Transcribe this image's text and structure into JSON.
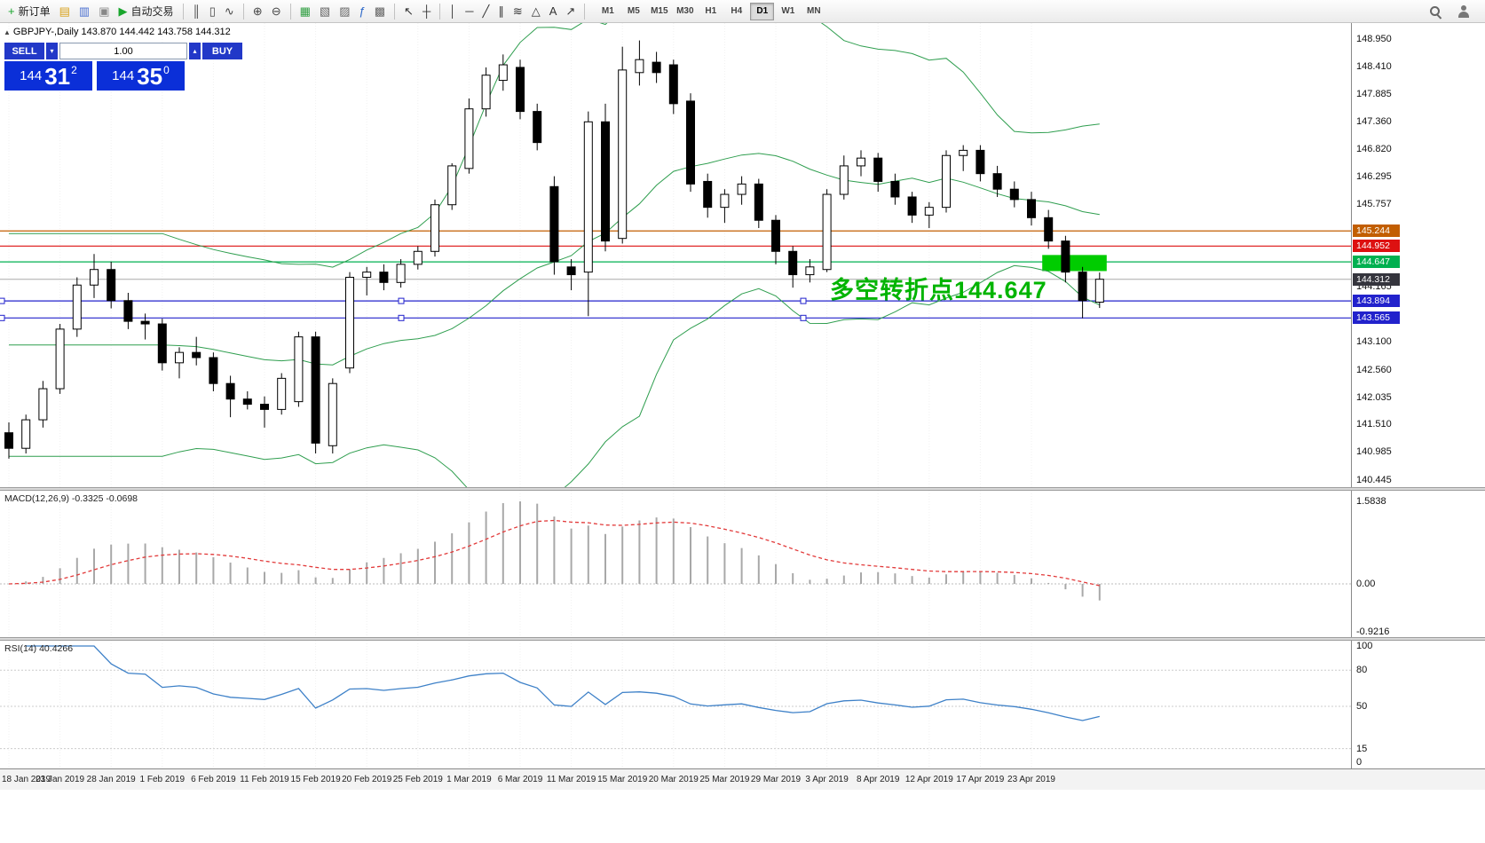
{
  "toolbar": {
    "items": [
      {
        "kind": "button",
        "name": "new-order-button",
        "glyph": "+",
        "glyph_color": "#18a52c",
        "label": "新订单"
      },
      {
        "kind": "icon",
        "name": "chart-window-icon",
        "glyph": "▤",
        "glyph_color": "#d8a018"
      },
      {
        "kind": "icon",
        "name": "navigator-icon",
        "glyph": "▥",
        "glyph_color": "#4a6fd0"
      },
      {
        "kind": "icon",
        "name": "terminal-icon",
        "glyph": "▣",
        "glyph_color": "#888888"
      },
      {
        "kind": "button",
        "name": "auto-trading-button",
        "glyph": "▶",
        "glyph_color": "#18a52c",
        "label": "自动交易"
      },
      {
        "kind": "sep"
      },
      {
        "kind": "icon",
        "name": "bar-chart-icon",
        "glyph": "║",
        "glyph_color": "#444444"
      },
      {
        "kind": "icon",
        "name": "candlestick-chart-icon",
        "glyph": "▯",
        "glyph_color": "#444444"
      },
      {
        "kind": "icon",
        "name": "line-chart-icon",
        "glyph": "∿",
        "glyph_color": "#444444"
      },
      {
        "kind": "sep"
      },
      {
        "kind": "icon",
        "name": "zoom-in-icon",
        "glyph": "⊕",
        "glyph_color": "#444444"
      },
      {
        "kind": "icon",
        "name": "zoom-out-icon",
        "glyph": "⊖",
        "glyph_color": "#444444"
      },
      {
        "kind": "sep"
      },
      {
        "kind": "icon",
        "name": "tile-windows-icon",
        "glyph": "▦",
        "glyph_color": "#2f9e41"
      },
      {
        "kind": "icon",
        "name": "cascade-windows-icon",
        "glyph": "▧",
        "glyph_color": "#666666"
      },
      {
        "kind": "icon",
        "name": "arrange-windows-icon",
        "glyph": "▨",
        "glyph_color": "#666666"
      },
      {
        "kind": "icon",
        "name": "indicators-icon",
        "glyph": "ƒ",
        "glyph_color": "#2a66c8"
      },
      {
        "kind": "icon",
        "name": "templates-icon",
        "glyph": "▩",
        "glyph_color": "#666666"
      },
      {
        "kind": "sep"
      },
      {
        "kind": "icon",
        "name": "cursor-icon",
        "glyph": "↖",
        "glyph_color": "#333333"
      },
      {
        "kind": "icon",
        "name": "crosshair-icon",
        "glyph": "┼",
        "glyph_color": "#333333"
      },
      {
        "kind": "sep"
      },
      {
        "kind": "icon",
        "name": "vertical-line-icon",
        "glyph": "│",
        "glyph_color": "#333333"
      },
      {
        "kind": "icon",
        "name": "horizontal-line-icon",
        "glyph": "─",
        "glyph_color": "#333333"
      },
      {
        "kind": "icon",
        "name": "trendline-icon",
        "glyph": "╱",
        "glyph_color": "#333333"
      },
      {
        "kind": "icon",
        "name": "channel-icon",
        "glyph": "∥",
        "glyph_color": "#333333"
      },
      {
        "kind": "icon",
        "name": "fibonacci-icon",
        "glyph": "≋",
        "glyph_color": "#333333"
      },
      {
        "kind": "icon",
        "name": "shapes-icon",
        "glyph": "△",
        "glyph_color": "#333333"
      },
      {
        "kind": "icon",
        "name": "text-label-icon",
        "glyph": "A",
        "glyph_color": "#333333"
      },
      {
        "kind": "icon",
        "name": "arrow-tool-icon",
        "glyph": "↗",
        "glyph_color": "#333333"
      },
      {
        "kind": "sep"
      }
    ],
    "timeframes": [
      {
        "label": "M1"
      },
      {
        "label": "M5"
      },
      {
        "label": "M15"
      },
      {
        "label": "M30"
      },
      {
        "label": "H1"
      },
      {
        "label": "H4"
      },
      {
        "label": "D1",
        "active": true
      },
      {
        "label": "W1"
      },
      {
        "label": "MN"
      }
    ]
  },
  "chart": {
    "collapse_glyph": "▲",
    "symbol_line": "GBPJPY-,Daily  143.870 144.442 143.758 144.312"
  },
  "trade": {
    "sell_label": "SELL",
    "buy_label": "BUY",
    "volume": "1.00",
    "spinner_up": "▴",
    "spinner_down": "▾",
    "sell_price": {
      "prefix": "144",
      "big": "31",
      "sup": "2"
    },
    "buy_price": {
      "prefix": "144",
      "big": "35",
      "sup": "0"
    }
  },
  "price_axis": {
    "ticks": [
      "148.950",
      "148.410",
      "147.885",
      "147.360",
      "146.820",
      "146.295",
      "145.757",
      "144.165",
      "143.100",
      "142.560",
      "142.035",
      "141.510",
      "140.985",
      "140.445"
    ]
  },
  "chart_objects": {
    "levels": [
      {
        "text": "145.244",
        "price": 145.244,
        "color": "#c25e00"
      },
      {
        "text": "144.952",
        "price": 144.952,
        "color": "#dd1111"
      },
      {
        "text": "144.647",
        "price": 144.647,
        "color": "#00b050"
      },
      {
        "text": "143.894",
        "price": 143.894,
        "color": "#2222cc",
        "handles": [
          2,
          452,
          905
        ]
      },
      {
        "text": "143.565",
        "price": 143.565,
        "color": "#2222cc",
        "handles": [
          2,
          452,
          905
        ]
      }
    ],
    "current_price": {
      "text": "144.312",
      "price": 144.312,
      "line_color": "#aaaaaa",
      "badge_color": "#35353d"
    },
    "annotation": {
      "text": "多空转折点144.647",
      "color": "#00b400"
    },
    "highlight_rect": {
      "from_candle": 61,
      "to_candle": 64,
      "price_top": 144.78,
      "price_bottom": 144.47,
      "color": "#00cc00"
    }
  },
  "chart_data": {
    "type": "candlestick",
    "symbol": "GBPJPY",
    "period": "Daily",
    "last_ohlc": {
      "open": 143.87,
      "high": 144.442,
      "low": 143.758,
      "close": 144.312
    },
    "y_range": [
      140.445,
      149.05
    ],
    "dates": [
      "18 Jan 2019",
      "23 Jan 2019",
      "28 Jan 2019",
      "1 Feb 2019",
      "6 Feb 2019",
      "11 Feb 2019",
      "15 Feb 2019",
      "20 Feb 2019",
      "25 Feb 2019",
      "1 Mar 2019",
      "6 Mar 2019",
      "11 Mar 2019",
      "15 Mar 2019",
      "20 Mar 2019",
      "25 Mar 2019",
      "29 Mar 2019",
      "3 Apr 2019",
      "8 Apr 2019",
      "12 Apr 2019",
      "17 Apr 2019",
      "23 Apr 2019"
    ],
    "candles": [
      [
        141.35,
        141.55,
        140.85,
        141.05
      ],
      [
        141.05,
        141.7,
        140.95,
        141.6
      ],
      [
        141.6,
        142.35,
        141.45,
        142.2
      ],
      [
        142.2,
        143.45,
        142.1,
        143.35
      ],
      [
        143.35,
        144.35,
        143.2,
        144.2
      ],
      [
        144.2,
        144.8,
        143.95,
        144.5
      ],
      [
        144.5,
        144.65,
        143.75,
        143.9
      ],
      [
        143.9,
        144.05,
        143.35,
        143.5
      ],
      [
        143.5,
        143.65,
        143.15,
        143.45
      ],
      [
        143.45,
        143.55,
        142.55,
        142.7
      ],
      [
        142.7,
        143.0,
        142.4,
        142.9
      ],
      [
        142.9,
        143.2,
        142.65,
        142.8
      ],
      [
        142.8,
        142.9,
        142.15,
        142.3
      ],
      [
        142.3,
        142.45,
        141.65,
        142.0
      ],
      [
        142.0,
        142.15,
        141.8,
        141.9
      ],
      [
        141.9,
        142.05,
        141.45,
        141.8
      ],
      [
        141.8,
        142.5,
        141.7,
        142.4
      ],
      [
        141.95,
        143.3,
        141.85,
        143.2
      ],
      [
        143.2,
        143.3,
        140.95,
        141.15
      ],
      [
        141.1,
        142.4,
        140.95,
        142.3
      ],
      [
        142.6,
        144.45,
        142.5,
        144.35
      ],
      [
        144.35,
        144.55,
        144.0,
        144.45
      ],
      [
        144.45,
        144.6,
        144.1,
        144.25
      ],
      [
        144.25,
        144.7,
        144.15,
        144.6
      ],
      [
        144.6,
        144.95,
        144.5,
        144.85
      ],
      [
        144.85,
        145.85,
        144.75,
        145.75
      ],
      [
        145.75,
        146.55,
        145.65,
        146.5
      ],
      [
        146.45,
        147.8,
        146.35,
        147.6
      ],
      [
        147.6,
        148.4,
        147.45,
        148.25
      ],
      [
        148.15,
        148.65,
        147.95,
        148.45
      ],
      [
        148.4,
        148.55,
        147.4,
        147.55
      ],
      [
        147.55,
        147.7,
        146.8,
        146.95
      ],
      [
        146.1,
        146.3,
        144.4,
        144.65
      ],
      [
        144.55,
        144.7,
        144.1,
        144.4
      ],
      [
        144.45,
        147.55,
        143.6,
        147.35
      ],
      [
        147.35,
        147.7,
        144.85,
        145.05
      ],
      [
        145.1,
        148.8,
        145.0,
        148.35
      ],
      [
        148.3,
        148.92,
        148.05,
        148.55
      ],
      [
        148.5,
        148.7,
        148.1,
        148.3
      ],
      [
        148.45,
        148.55,
        147.5,
        147.7
      ],
      [
        147.75,
        147.9,
        146.0,
        146.15
      ],
      [
        146.2,
        146.35,
        145.5,
        145.7
      ],
      [
        145.7,
        146.05,
        145.4,
        145.95
      ],
      [
        145.95,
        146.3,
        145.75,
        146.15
      ],
      [
        146.15,
        146.25,
        145.3,
        145.45
      ],
      [
        145.45,
        145.55,
        144.6,
        144.85
      ],
      [
        144.85,
        144.95,
        144.15,
        144.4
      ],
      [
        144.4,
        144.7,
        144.25,
        144.55
      ],
      [
        144.5,
        146.05,
        144.45,
        145.95
      ],
      [
        145.95,
        146.7,
        145.85,
        146.5
      ],
      [
        146.5,
        146.8,
        146.3,
        146.65
      ],
      [
        146.65,
        146.75,
        146.0,
        146.2
      ],
      [
        146.2,
        146.35,
        145.75,
        145.9
      ],
      [
        145.9,
        146.0,
        145.4,
        145.55
      ],
      [
        145.55,
        145.8,
        145.3,
        145.7
      ],
      [
        145.7,
        146.8,
        145.6,
        146.7
      ],
      [
        146.7,
        146.9,
        146.4,
        146.8
      ],
      [
        146.8,
        146.9,
        146.2,
        146.35
      ],
      [
        146.35,
        146.5,
        145.9,
        146.05
      ],
      [
        146.05,
        146.2,
        145.7,
        145.85
      ],
      [
        145.85,
        146.0,
        145.35,
        145.5
      ],
      [
        145.5,
        145.65,
        144.9,
        145.05
      ],
      [
        145.05,
        145.15,
        144.25,
        144.45
      ],
      [
        144.45,
        144.55,
        143.56,
        143.9
      ],
      [
        143.87,
        144.442,
        143.758,
        144.312
      ]
    ],
    "indicators": {
      "bollinger": {
        "period": 20,
        "deviation": 2,
        "color": "#2f9e4f"
      },
      "macd": {
        "label": "MACD(12,26,9) -0.3325 -0.0698",
        "params": [
          12,
          26,
          9
        ],
        "values": [
          -0.3325,
          -0.0698
        ],
        "scale": [
          "1.5838",
          "0.00",
          "-0.9216"
        ],
        "histogram_color": "#a8a8a8",
        "signal_color": "#e23a3a"
      },
      "rsi": {
        "label": "RSI(14) 40.4266",
        "period": 14,
        "value": 40.4266,
        "scale": [
          "100",
          "80",
          "50",
          "15",
          "0"
        ],
        "line_color": "#3e81c8"
      }
    }
  }
}
